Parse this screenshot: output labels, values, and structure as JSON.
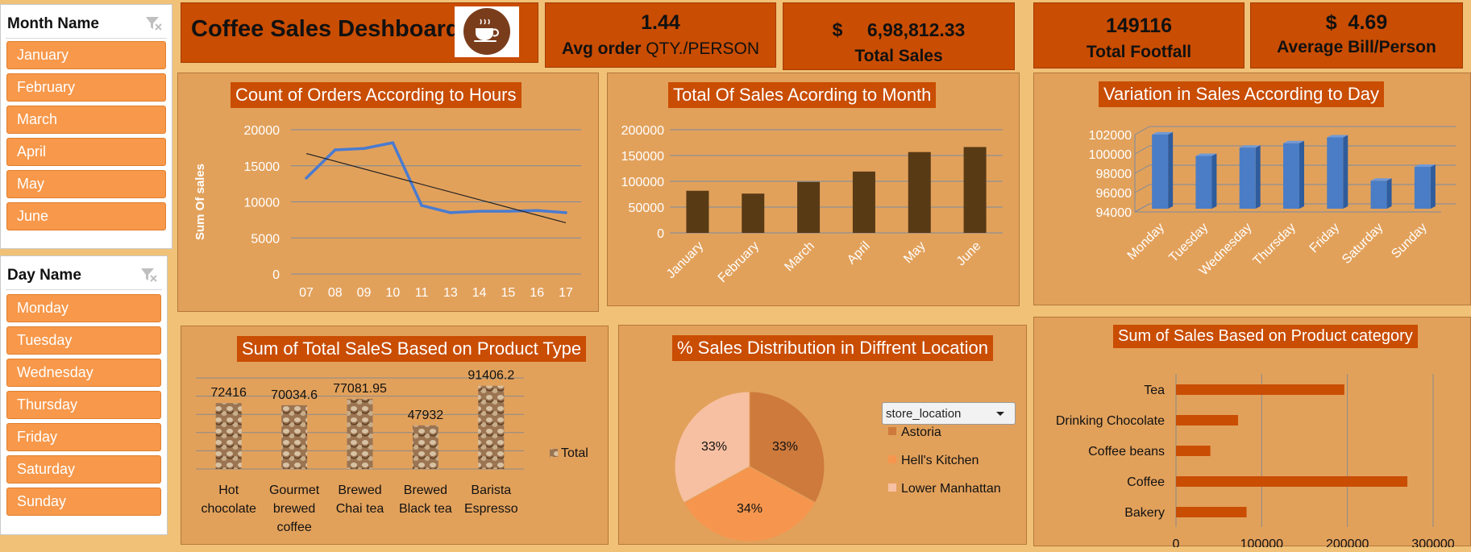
{
  "month_slicer": {
    "title": "Month Name",
    "items": [
      "January",
      "February",
      "March",
      "April",
      "May",
      "June"
    ]
  },
  "day_slicer": {
    "title": "Day Name",
    "items": [
      "Monday",
      "Tuesday",
      "Wednesday",
      "Thursday",
      "Friday",
      "Saturday",
      "Sunday"
    ]
  },
  "header": {
    "title": "Coffee Sales Deshboard",
    "logo_icon": "coffee-cup-icon"
  },
  "kpis": [
    {
      "value": "1.44",
      "label_bold": "Avg order ",
      "label_rest": "QTY./PERSON"
    },
    {
      "currency": "$",
      "value": "6,98,812.33",
      "label": "Total Sales"
    },
    {
      "value": "149116",
      "label": "Total Footfall"
    },
    {
      "value": "$  4.69",
      "label": "Average Bill/Person"
    }
  ],
  "colors": {
    "accent": "#c94d02",
    "panel": "#e2a15b",
    "background": "#f0c177",
    "slicer_item": "#f7984a",
    "line": "#4a7bd0",
    "bar_dark": "#583a15",
    "bar_blue": "#4a7dc6",
    "bar_orange": "#c94d02",
    "pie_astoria": "#cd7a3c",
    "pie_hells_kitchen": "#f6964e",
    "pie_lower_manhattan": "#f8c0a2"
  },
  "chart_data": [
    {
      "type": "line",
      "title": "Count of Orders According to Hours",
      "ylabel": "Sum Of sales",
      "categories": [
        "07",
        "08",
        "09",
        "10",
        "11",
        "13",
        "14",
        "15",
        "16",
        "17"
      ],
      "series": [
        {
          "values": [
            13300,
            17200,
            17400,
            18200,
            9500,
            8500,
            8700,
            8700,
            8800,
            8500
          ]
        }
      ],
      "trendline": {
        "start": 16700,
        "end": 7100
      },
      "yticks": [
        "0",
        "5000",
        "10000",
        "15000",
        "20000"
      ],
      "ylim": [
        0,
        20000
      ],
      "grid": true
    },
    {
      "type": "bar",
      "title": "Total Of Sales Acording to Month",
      "categories": [
        "January",
        "February",
        "March",
        "April",
        "May",
        "June"
      ],
      "values": [
        81678,
        76145,
        98835,
        118941,
        156728,
        166486
      ],
      "yticks": [
        "0",
        "50000",
        "100000",
        "150000",
        "200000"
      ],
      "ylim": [
        0,
        200000
      ],
      "grid": true
    },
    {
      "type": "bar",
      "title": "Variation in Sales According to Day",
      "categories": [
        "Monday",
        "Tuesday",
        "Wednesday",
        "Thursday",
        "Friday",
        "Saturday",
        "Sunday"
      ],
      "values": [
        101677,
        99455,
        100313,
        100767,
        101373,
        96894,
        98330
      ],
      "yticks": [
        "94000",
        "96000",
        "98000",
        "100000",
        "102000"
      ],
      "ylim": [
        94000,
        102000
      ],
      "grid": true
    },
    {
      "type": "bar",
      "title": "Sum of Total SaleS Based on Product Type",
      "categories": [
        [
          "Hot",
          "chocolate"
        ],
        [
          "Gourmet",
          "brewed",
          "coffee"
        ],
        [
          "Brewed",
          "Chai tea"
        ],
        [
          "Brewed",
          "Black tea"
        ],
        [
          "Barista",
          "Espresso"
        ]
      ],
      "values": [
        72416,
        70034.6,
        77081.95,
        47932,
        91406.2
      ],
      "value_labels": [
        "72416",
        "70034.6",
        "77081.95",
        "47932",
        "91406.2"
      ],
      "legend": "Total",
      "legend_position": "right",
      "grid": true
    },
    {
      "type": "pie",
      "title": "% Sales Distribution in Diffrent Location",
      "filter_label": "store_location",
      "slices": [
        {
          "name": "Astoria",
          "value": 33,
          "label": "33%"
        },
        {
          "name": "Hell's Kitchen",
          "value": 34,
          "label": "34%"
        },
        {
          "name": "Lower Manhattan",
          "value": 33,
          "label": "33%"
        }
      ],
      "legend_position": "right"
    },
    {
      "type": "bar",
      "orientation": "horizontal",
      "title": "Sum of Sales Based on Product category",
      "categories": [
        "Tea",
        "Drinking Chocolate",
        "Coffee beans",
        "Coffee",
        "Bakery"
      ],
      "values": [
        196406,
        72416,
        40085,
        269952,
        82316
      ],
      "xticks": [
        "0",
        "100000",
        "200000",
        "300000"
      ],
      "xlim": [
        0,
        300000
      ],
      "grid": true
    }
  ]
}
